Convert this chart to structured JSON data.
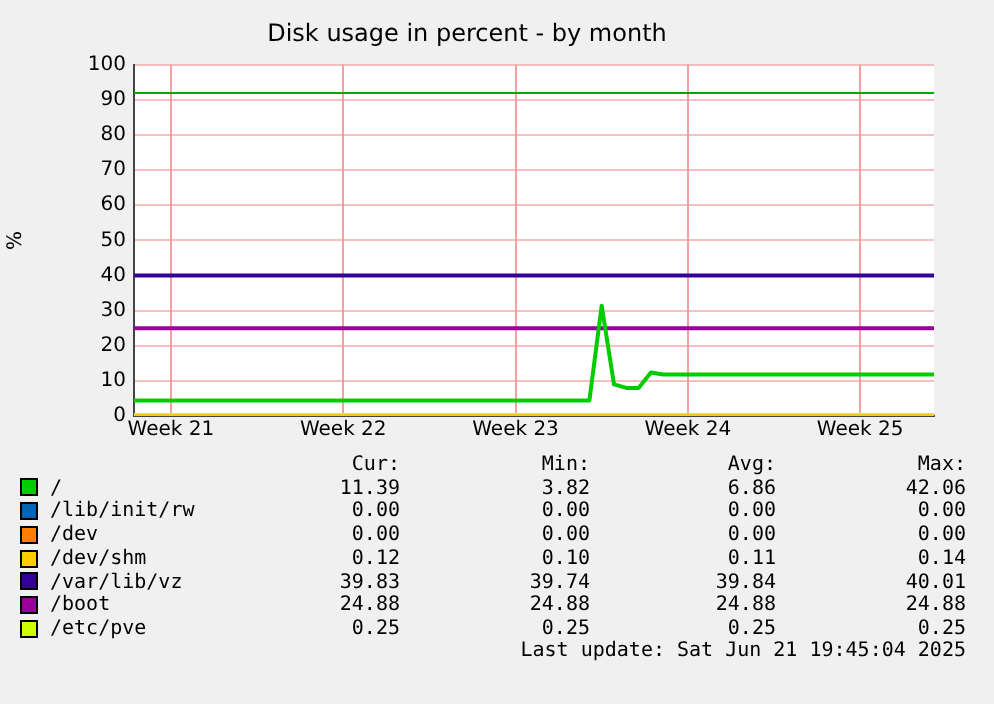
{
  "chart_data": {
    "type": "line",
    "title": "Disk usage in percent - by month",
    "ylabel": "%",
    "categories": [
      null,
      null,
      null,
      "Week 21",
      null,
      null,
      null,
      null,
      null,
      null,
      null,
      null,
      null,
      null,
      null,
      null,
      null,
      "Week 22",
      null,
      null,
      null,
      null,
      null,
      null,
      null,
      null,
      null,
      null,
      null,
      null,
      null,
      "Week 23",
      null,
      null,
      null,
      null,
      null,
      null,
      null,
      null,
      null,
      null,
      null,
      null,
      null,
      "Week 24",
      null,
      null,
      null,
      null,
      null,
      null,
      null,
      null,
      null,
      null,
      null,
      null,
      null,
      "Week 25",
      null,
      null,
      null,
      null,
      null,
      null
    ],
    "ylim": [
      0,
      100
    ],
    "yticks": [
      0,
      10,
      20,
      30,
      40,
      50,
      60,
      70,
      80,
      90,
      100
    ],
    "series": [
      {
        "name": "/",
        "color": "#00cc00",
        "values": [
          4.4,
          4.4,
          4.4,
          4.4,
          4.4,
          4.4,
          4.4,
          4.4,
          4.4,
          4.4,
          4.4,
          4.4,
          4.4,
          4.4,
          4.4,
          4.4,
          4.4,
          4.4,
          4.4,
          4.4,
          4.4,
          4.4,
          4.4,
          4.4,
          4.4,
          4.4,
          4.4,
          4.4,
          4.4,
          4.4,
          4.4,
          4.4,
          4.4,
          4.4,
          4.4,
          4.4,
          4.4,
          4.4,
          31.4,
          9,
          8,
          8,
          12.4,
          11.8,
          11.8,
          11.8,
          11.8,
          11.8,
          11.8,
          11.8,
          11.8,
          11.8,
          11.8,
          11.8,
          11.8,
          11.8,
          11.8,
          11.8,
          11.8,
          11.8,
          11.8,
          11.8,
          11.8,
          11.8,
          11.8,
          11.8
        ]
      },
      {
        "name": "/lib/init/rw",
        "color": "#0066b3",
        "values": [
          null,
          null,
          null,
          null,
          null,
          null,
          null,
          null,
          null,
          null,
          null,
          null,
          null,
          null,
          null,
          null,
          null,
          null,
          null,
          null,
          null,
          null,
          null,
          null,
          null,
          null,
          null,
          null,
          null,
          null,
          null,
          null,
          null,
          null,
          null,
          null,
          null,
          null,
          null,
          null,
          null,
          null,
          null,
          null,
          null,
          null,
          null,
          null,
          null,
          null,
          null,
          null,
          null,
          null,
          null,
          null,
          null,
          null,
          null,
          null,
          null,
          null,
          null,
          null,
          null,
          null
        ]
      },
      {
        "name": "/dev",
        "color": "#ff8000",
        "values": [
          null,
          null,
          null,
          null,
          null,
          null,
          null,
          null,
          null,
          null,
          null,
          null,
          null,
          null,
          null,
          null,
          null,
          null,
          null,
          null,
          null,
          null,
          null,
          null,
          null,
          null,
          null,
          null,
          null,
          null,
          null,
          null,
          null,
          null,
          null,
          null,
          null,
          null,
          null,
          null,
          null,
          null,
          null,
          null,
          null,
          null,
          null,
          null,
          null,
          null,
          null,
          null,
          null,
          null,
          null,
          null,
          null,
          null,
          null,
          null,
          null,
          null,
          null,
          null,
          null,
          null
        ]
      },
      {
        "name": "/dev/shm",
        "color": "#ffcc00",
        "values": [
          0.1,
          0.1,
          0.1,
          0.1,
          0.1,
          0.1,
          0.1,
          0.1,
          0.1,
          0.1,
          0.1,
          0.1,
          0.1,
          0.1,
          0.1,
          0.1,
          0.1,
          0.1,
          0.1,
          0.1,
          0.1,
          0.1,
          0.1,
          0.1,
          0.1,
          0.1,
          0.1,
          0.1,
          0.1,
          0.1,
          0.1,
          0.1,
          0.1,
          0.1,
          0.1,
          0.1,
          0.1,
          0.1,
          0.1,
          0.1,
          0.1,
          0.1,
          0.1,
          0.1,
          0.1,
          0.1,
          0.1,
          0.1,
          0.1,
          0.1,
          0.1,
          0.1,
          0.1,
          0.1,
          0.1,
          0.1,
          0.1,
          0.1,
          0.1,
          0.1,
          0.1,
          0.1,
          0.1,
          0.1,
          0.1,
          0.1
        ]
      },
      {
        "name": "/var/lib/vz",
        "color": "#330099",
        "values": [
          40,
          40,
          40,
          40,
          40,
          40,
          40,
          40,
          40,
          40,
          40,
          40,
          40,
          40,
          40,
          40,
          40,
          40,
          40,
          40,
          40,
          40,
          40,
          40,
          40,
          40,
          40,
          40,
          40,
          40,
          40,
          40,
          40,
          40,
          40,
          40,
          40,
          40,
          40,
          40,
          40,
          40,
          40,
          40,
          40,
          40,
          40,
          40,
          40,
          40,
          40,
          40,
          40,
          40,
          40,
          40,
          40,
          40,
          40,
          40,
          40,
          40,
          40,
          40,
          40,
          40
        ]
      },
      {
        "name": "/boot",
        "color": "#990099",
        "values": [
          25,
          25,
          25,
          25,
          25,
          25,
          25,
          25,
          25,
          25,
          25,
          25,
          25,
          25,
          25,
          25,
          25,
          25,
          25,
          25,
          25,
          25,
          25,
          25,
          25,
          25,
          25,
          25,
          25,
          25,
          25,
          25,
          25,
          25,
          25,
          25,
          25,
          25,
          25,
          25,
          25,
          25,
          25,
          25,
          25,
          25,
          25,
          25,
          25,
          25,
          25,
          25,
          25,
          25,
          25,
          25,
          25,
          25,
          25,
          25,
          25,
          25,
          25,
          25,
          25,
          25
        ]
      },
      {
        "name": "/etc/pve",
        "color": "#ccff00",
        "values": [
          0.3,
          0.3,
          0.3,
          0.3,
          0.3,
          0.3,
          0.3,
          0.3,
          0.3,
          0.3,
          0.3,
          0.3,
          0.3,
          0.3,
          0.3,
          0.3,
          0.3,
          0.3,
          0.3,
          0.3,
          0.3,
          0.3,
          0.3,
          0.3,
          0.3,
          0.3,
          0.3,
          0.3,
          0.3,
          0.3,
          0.3,
          0.3,
          0.3,
          0.3,
          0.3,
          0.3,
          0.3,
          0.3,
          0.3,
          0.3,
          0.3,
          0.3,
          0.3,
          0.3,
          0.3,
          0.3,
          0.3,
          0.3,
          0.3,
          0.3,
          0.3,
          0.3,
          0.3,
          0.3,
          0.3,
          0.3,
          0.3,
          0.3,
          0.3,
          0.3,
          0.3,
          0.3,
          0.3,
          0.3,
          0.3,
          0.3
        ]
      }
    ],
    "ref_lines": [
      {
        "axis": "y",
        "value": 92,
        "color": "#00aa00"
      }
    ],
    "annotations": [
      "Cur:",
      "Min:",
      "Avg:",
      "Max:",
      "11.39",
      "3.82",
      "6.86",
      "42.06",
      "0.00",
      "0.00",
      "0.00",
      "0.00",
      "0.00",
      "0.00",
      "0.00",
      "0.00",
      "0.12",
      "0.10",
      "0.11",
      "0.14",
      "39.83",
      "39.74",
      "39.84",
      "40.01",
      "24.88",
      "24.88",
      "24.88",
      "24.88",
      "0.25",
      "0.25",
      "0.25",
      "0.25",
      "Last update: Sat Jun 21 19:45:04 2025"
    ],
    "grid": true,
    "legend": "bottom",
    "marker": "none",
    "line_style": "solid"
  }
}
